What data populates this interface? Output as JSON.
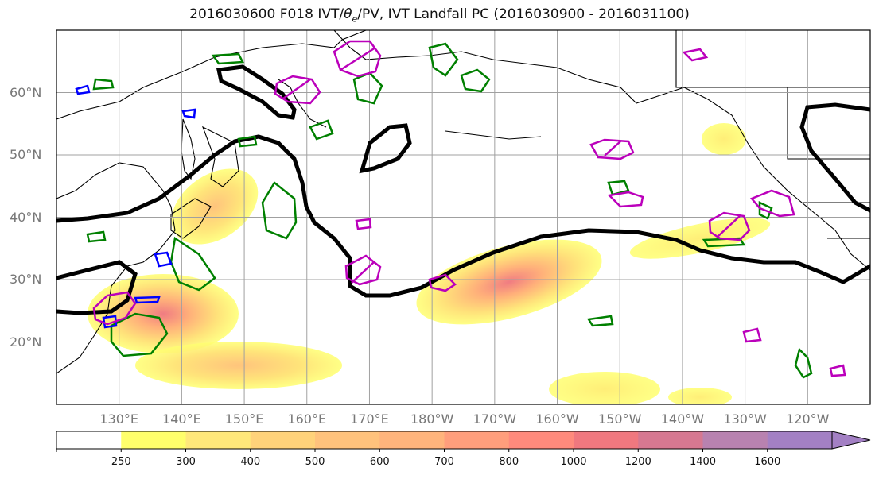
{
  "title_parts": {
    "prefix": "2016030600 F018 IVT/",
    "theta": "θ",
    "sub": "e",
    "suffix": "/PV, IVT Landfall PC (2016030900 - 2016031100)"
  },
  "map": {
    "lat_labels": [
      "60°N",
      "50°N",
      "40°N",
      "30°N",
      "20°N"
    ],
    "lon_labels": [
      "130°E",
      "140°E",
      "150°E",
      "160°E",
      "170°E",
      "180°W",
      "170°W",
      "160°W",
      "150°W",
      "140°W",
      "130°W",
      "120°W"
    ],
    "lat_range": [
      10,
      70
    ],
    "lon_range": [
      120,
      250
    ],
    "grid": true,
    "colors": {
      "ocean": "#ffffff",
      "coast": "#000000",
      "grid": "#a0a0a0",
      "pv_contour": "#000000",
      "theta_e_green": "#008000",
      "theta_e_blue": "#0000ff",
      "pv_magenta": "#bb00bb"
    }
  },
  "colorbar": {
    "labels": [
      "250",
      "300",
      "400",
      "500",
      "600",
      "700",
      "800",
      "1000",
      "1200",
      "1400",
      "1600"
    ],
    "colors": [
      "#ffffff",
      "#ffff6b",
      "#ffe87a",
      "#ffd27a",
      "#ffc27c",
      "#ffb47c",
      "#ff9e7c",
      "#ff8a7c",
      "#f0787f",
      "#d67891",
      "#b882b0",
      "#a380c4"
    ],
    "extend": "max"
  }
}
